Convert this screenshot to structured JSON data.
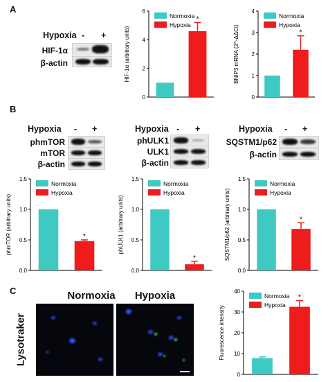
{
  "panels": {
    "a": "A",
    "b": "B",
    "c": "C"
  },
  "blots": {
    "a": {
      "condition": "Hypoxia",
      "minus": "-",
      "plus": "+",
      "rows": [
        "HIF-1α",
        "β-actin"
      ]
    },
    "b1": {
      "condition": "Hypoxia",
      "minus": "-",
      "plus": "+",
      "rows": [
        "phmTOR",
        "mTOR",
        "β-actin"
      ]
    },
    "b2": {
      "condition": "Hypoxia",
      "minus": "-",
      "plus": "+",
      "rows": [
        "phULK1",
        "ULK1",
        "β-actin"
      ]
    },
    "b3": {
      "condition": "Hypoxia",
      "minus": "-",
      "plus": "+",
      "rows": [
        "SQSTM1/p62",
        "β-actin"
      ]
    }
  },
  "microscopy": {
    "stain": "Lysotraker",
    "left_title": "Normoxia",
    "right_title": "Hypoxia"
  },
  "colors": {
    "normoxia": "#3ec9c3",
    "hypoxia": "#ee1c1c"
  },
  "chart_data": [
    {
      "id": "a1",
      "type": "bar",
      "categories": [
        "Normoxia",
        "Hypoxia"
      ],
      "values": [
        1.0,
        4.6
      ],
      "errors": [
        0,
        0.6
      ],
      "ylabel": "HIF-1α (arbitrary units)",
      "ylim": [
        0,
        6
      ],
      "yticks": [
        0,
        2,
        4,
        6
      ],
      "legend": [
        "Normoxia",
        "Hypoxia"
      ],
      "legend_position": "top-left",
      "annotation": "*"
    },
    {
      "id": "a2",
      "type": "bar",
      "categories": [
        "Normoxia",
        "Hypoxia"
      ],
      "values": [
        1.0,
        2.2
      ],
      "errors": [
        0,
        0.65
      ],
      "ylabel": "BNIP3 mRNA (2^-ΔΔCt)",
      "ylim": [
        0,
        4
      ],
      "yticks": [
        0,
        1,
        2,
        3,
        4
      ],
      "legend": [
        "Normoxia",
        "Hypoxia"
      ],
      "legend_position": "top-left",
      "annotation": "*"
    },
    {
      "id": "b1",
      "type": "bar",
      "categories": [
        "Normoxia",
        "Hypoxia"
      ],
      "values": [
        1.0,
        0.48
      ],
      "errors": [
        0,
        0.02
      ],
      "ylabel": "phmTOR (arbitrary units)",
      "ylim": [
        0,
        1.5
      ],
      "yticks": [
        0.0,
        0.5,
        1.0,
        1.5
      ],
      "legend": [
        "Normoxia",
        "Hypoxia"
      ],
      "legend_position": "top-left",
      "annotation": "*"
    },
    {
      "id": "b2",
      "type": "bar",
      "categories": [
        "Normoxia",
        "Hypoxia"
      ],
      "values": [
        1.0,
        0.1
      ],
      "errors": [
        0,
        0.05
      ],
      "ylabel": "phULK1 (arbitrary units)",
      "ylim": [
        0,
        1.5
      ],
      "yticks": [
        0.0,
        0.5,
        1.0,
        1.5
      ],
      "legend": [
        "Normoxia",
        "Hypoxia"
      ],
      "legend_position": "top-left",
      "annotation": "*"
    },
    {
      "id": "b3",
      "type": "bar",
      "categories": [
        "Normoxia",
        "Hypoxia"
      ],
      "values": [
        1.0,
        0.68
      ],
      "errors": [
        0,
        0.1
      ],
      "ylabel": "SQSTM1/p62 (arbitrary units)",
      "ylim": [
        0,
        1.5
      ],
      "yticks": [
        0.0,
        0.5,
        1.0,
        1.5
      ],
      "legend": [
        "Normoxia",
        "Hypoxia"
      ],
      "legend_position": "top-left",
      "annotation": "*"
    },
    {
      "id": "c1",
      "type": "bar",
      "categories": [
        "Normoxia",
        "Hypoxia"
      ],
      "values": [
        7.8,
        32.5
      ],
      "errors": [
        0.6,
        3.0
      ],
      "ylabel": "Fluorescence intensity",
      "ylim": [
        0,
        40
      ],
      "yticks": [
        0,
        10,
        20,
        30,
        40
      ],
      "legend": [
        "Normoxia",
        "Hypoxia"
      ],
      "legend_position": "top-left",
      "annotation": "*"
    }
  ]
}
